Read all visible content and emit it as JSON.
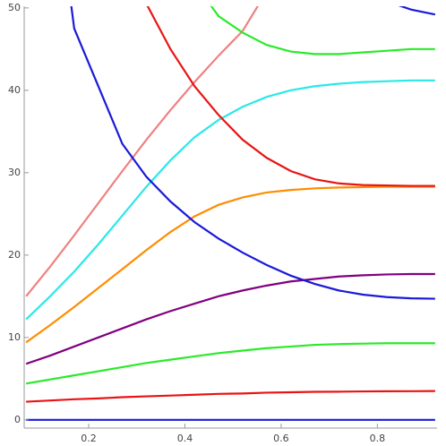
{
  "chart_data": {
    "type": "line",
    "x": [
      0.07,
      0.12,
      0.17,
      0.22,
      0.27,
      0.32,
      0.37,
      0.42,
      0.47,
      0.52,
      0.57,
      0.62,
      0.67,
      0.72,
      0.77,
      0.82,
      0.87,
      0.92
    ],
    "series": [
      {
        "color": "#1a1ad8",
        "values": [
          0,
          0,
          0,
          0,
          0,
          0,
          0,
          0,
          0,
          0,
          0,
          0,
          0,
          0,
          0,
          0,
          0,
          0
        ]
      },
      {
        "color": "#e81414",
        "values": [
          2.2,
          2.35,
          2.5,
          2.6,
          2.75,
          2.85,
          2.95,
          3.05,
          3.15,
          3.2,
          3.3,
          3.35,
          3.4,
          3.42,
          3.45,
          3.47,
          3.48,
          3.5
        ]
      },
      {
        "color": "#2aea2a",
        "values": [
          4.4,
          4.9,
          5.4,
          5.9,
          6.4,
          6.9,
          7.3,
          7.7,
          8.1,
          8.4,
          8.7,
          8.9,
          9.1,
          9.2,
          9.25,
          9.3,
          9.3,
          9.3
        ]
      },
      {
        "color": "#800080",
        "values": [
          6.8,
          7.8,
          8.9,
          10,
          11.1,
          12.2,
          13.2,
          14.1,
          15,
          15.7,
          16.3,
          16.8,
          17.1,
          17.4,
          17.55,
          17.65,
          17.7,
          17.7
        ]
      },
      {
        "color": "#ff8c00",
        "values": [
          9.4,
          11.5,
          13.7,
          16,
          18.3,
          20.6,
          22.8,
          24.7,
          26.1,
          27,
          27.6,
          27.9,
          28.1,
          28.2,
          28.25,
          28.3,
          28.3,
          28.3
        ]
      },
      {
        "color": "#2ae8e8",
        "values": [
          12.2,
          15,
          18,
          21.3,
          24.8,
          28.3,
          31.5,
          34.3,
          36.4,
          38,
          39.2,
          40,
          40.5,
          40.8,
          41,
          41.1,
          41.2,
          41.2
        ]
      },
      {
        "color": "#f08080",
        "values": [
          15,
          18.6,
          22.4,
          26.3,
          30.2,
          34,
          37.6,
          41,
          44.2,
          47.2,
          52,
          null,
          null,
          null,
          null,
          null,
          null,
          null
        ]
      },
      {
        "color": "#1a1ad8",
        "values": [
          null,
          70,
          47.5,
          40.5,
          33.5,
          29.5,
          26.5,
          24,
          22,
          20.3,
          18.8,
          17.5,
          16.5,
          15.7,
          15.2,
          14.9,
          14.75,
          14.7
        ]
      },
      {
        "color": "#e81414",
        "values": [
          null,
          null,
          null,
          null,
          null,
          50.5,
          45,
          40.5,
          37,
          34,
          31.8,
          30.2,
          29.2,
          28.7,
          28.5,
          28.45,
          28.4,
          28.4
        ]
      },
      {
        "color": "#2aea2a",
        "values": [
          null,
          null,
          null,
          null,
          null,
          null,
          null,
          53,
          49,
          47,
          45.5,
          44.7,
          44.4,
          44.4,
          44.6,
          44.8,
          45,
          45
        ]
      },
      {
        "color": "#1a1ad8",
        "values": [
          null,
          null,
          null,
          null,
          null,
          null,
          null,
          null,
          null,
          null,
          null,
          null,
          null,
          null,
          null,
          50.8,
          49.8,
          49.2
        ]
      }
    ],
    "xlim": [
      0.066,
      0.924
    ],
    "ylim": [
      -1,
      50.2
    ],
    "xticks": [
      0.2,
      0.4,
      0.6,
      0.8
    ],
    "yticks": [
      0,
      10,
      20,
      30,
      40,
      50
    ]
  }
}
